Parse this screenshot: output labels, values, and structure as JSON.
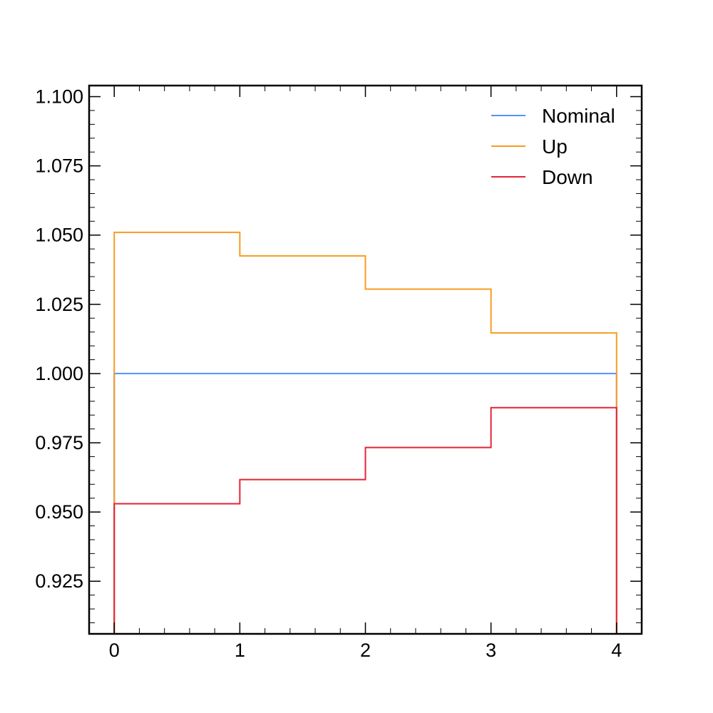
{
  "chart_data": {
    "type": "line",
    "drawstyle": "step-histogram",
    "bin_edges": [
      0,
      1,
      2,
      3,
      4
    ],
    "series": [
      {
        "name": "Nominal",
        "color": "#5790fc",
        "values": [
          1.0,
          1.0,
          1.0,
          1.0
        ]
      },
      {
        "name": "Up",
        "color": "#f89c20",
        "values": [
          1.051,
          1.0425,
          1.0305,
          1.0147
        ]
      },
      {
        "name": "Down",
        "color": "#e42536",
        "values": [
          0.953,
          0.9617,
          0.9733,
          0.9877
        ]
      }
    ],
    "xlim": [
      -0.2,
      4.2
    ],
    "ylim": [
      0.906,
      1.104
    ],
    "xticks": [
      0,
      1,
      2,
      3,
      4
    ],
    "xtick_labels": [
      "0",
      "1",
      "2",
      "3",
      "4"
    ],
    "yticks": [
      0.925,
      0.95,
      0.975,
      1.0,
      1.025,
      1.05,
      1.075,
      1.1
    ],
    "ytick_labels": [
      "0.925",
      "0.950",
      "0.975",
      "1.000",
      "1.025",
      "1.050",
      "1.075",
      "1.100"
    ],
    "title": "",
    "xlabel": "",
    "ylabel": "",
    "grid": false,
    "legend_position": "top-right"
  }
}
